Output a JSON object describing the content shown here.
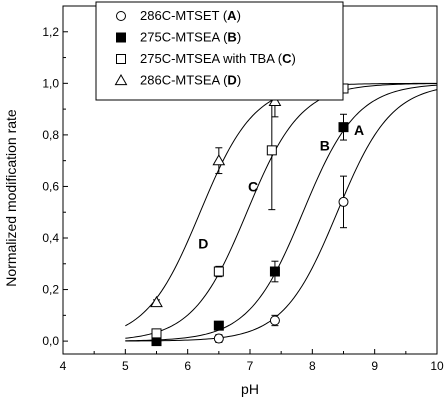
{
  "chart_data": {
    "type": "scatter",
    "xlabel": "pH",
    "ylabel": "Normalized modification rate",
    "xlim": [
      4,
      10
    ],
    "ylim": [
      -0.05,
      1.3
    ],
    "x_ticks": [
      4,
      5,
      6,
      7,
      8,
      9,
      10
    ],
    "y_ticks": [
      0.0,
      0.2,
      0.4,
      0.6,
      0.8,
      1.0,
      1.2
    ],
    "x_tick_labels": [
      "4",
      "5",
      "6",
      "7",
      "8",
      "9",
      "10"
    ],
    "y_tick_labels": [
      "0,0",
      "0,2",
      "0,4",
      "0,6",
      "0,8",
      "1,0",
      "1,2"
    ],
    "grid": false,
    "legend": "top",
    "series": [
      {
        "name": "286C-MTSET",
        "name_letter": "A",
        "marker": "circle-open",
        "curve_label": "A",
        "x": [
          6.5,
          7.4,
          8.5
        ],
        "y": [
          0.01,
          0.08,
          0.54
        ],
        "yerr": [
          0.015,
          0.02,
          0.1
        ],
        "fit_pka": 8.4,
        "curve_label_pos": [
          8.75,
          0.8
        ]
      },
      {
        "name": "275C-MTSEA",
        "name_letter": "B",
        "marker": "square-filled",
        "curve_label": "B",
        "x": [
          5.5,
          6.5,
          7.4,
          8.5
        ],
        "y": [
          0.0,
          0.06,
          0.27,
          0.83
        ],
        "yerr": [
          0.01,
          0.015,
          0.04,
          0.05
        ],
        "fit_pka": 7.85,
        "curve_label_pos": [
          8.2,
          0.74
        ]
      },
      {
        "name": "275C-MTSEA with TBA",
        "name_letter": "C",
        "marker": "square-open",
        "curve_label": "C",
        "x": [
          5.5,
          6.5,
          7.35,
          8.5
        ],
        "y": [
          0.03,
          0.27,
          0.74,
          0.98
        ],
        "yerr": [
          0.015,
          0.02,
          0.23,
          0.01
        ],
        "fit_pka": 6.95,
        "curve_label_pos": [
          7.05,
          0.58
        ]
      },
      {
        "name": "286C-MTSEA",
        "name_letter": "D",
        "marker": "triangle-open",
        "curve_label": "D",
        "x": [
          5.5,
          6.5,
          7.4
        ],
        "y": [
          0.15,
          0.7,
          0.93
        ],
        "yerr": [
          0.01,
          0.05,
          0.06
        ],
        "fit_pka": 6.2,
        "curve_label_pos": [
          6.25,
          0.36
        ]
      }
    ]
  }
}
